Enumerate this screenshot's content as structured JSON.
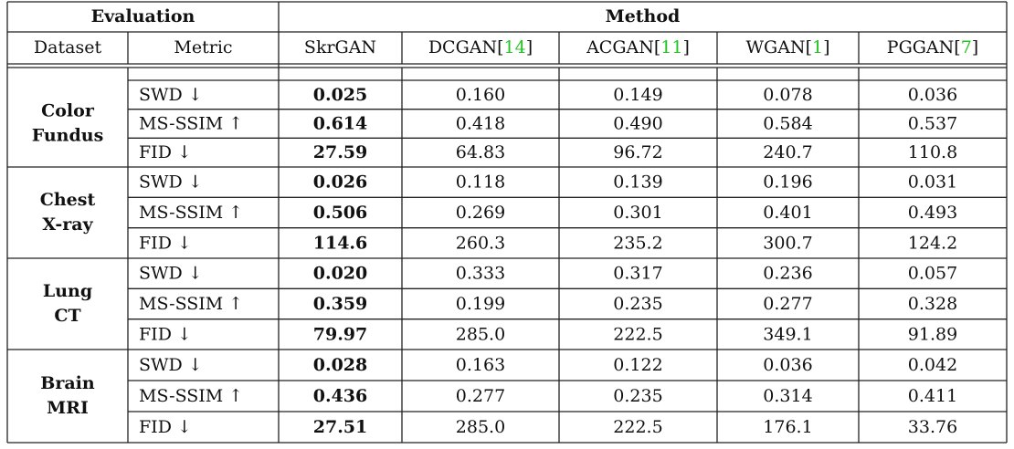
{
  "table": {
    "group_headers": [
      "Evaluation",
      "Method"
    ],
    "columns": [
      {
        "name": "Dataset"
      },
      {
        "name": "Metric"
      },
      {
        "name": "SkrGAN"
      },
      {
        "name": "DCGAN",
        "open": "[",
        "ref": "14",
        "close": "]"
      },
      {
        "name": "ACGAN",
        "open": "[",
        "ref": "11",
        "close": "]"
      },
      {
        "name": "WGAN",
        "open": "[",
        "ref": "1",
        "close": "]"
      },
      {
        "name": "PGGAN",
        "open": "[",
        "ref": "7",
        "close": "]"
      }
    ],
    "groups": [
      {
        "dataset": [
          "Color",
          "Fundus"
        ],
        "rows": [
          {
            "metric": "SWD ↓",
            "values": [
              "0.025",
              "0.160",
              "0.149",
              "0.078",
              "0.036"
            ]
          },
          {
            "metric": "MS-SSIM ↑",
            "values": [
              "0.614",
              "0.418",
              "0.490",
              "0.584",
              "0.537"
            ]
          },
          {
            "metric": "FID ↓",
            "values": [
              "27.59",
              "64.83",
              "96.72",
              "240.7",
              "110.8"
            ]
          }
        ]
      },
      {
        "dataset": [
          "Chest",
          "X-ray"
        ],
        "rows": [
          {
            "metric": "SWD ↓",
            "values": [
              "0.026",
              "0.118",
              "0.139",
              "0.196",
              "0.031"
            ]
          },
          {
            "metric": "MS-SSIM ↑",
            "values": [
              "0.506",
              "0.269",
              "0.301",
              "0.401",
              "0.493"
            ]
          },
          {
            "metric": "FID ↓",
            "values": [
              "114.6",
              "260.3",
              "235.2",
              "300.7",
              "124.2"
            ]
          }
        ]
      },
      {
        "dataset": [
          "Lung",
          "CT"
        ],
        "rows": [
          {
            "metric": "SWD ↓",
            "values": [
              "0.020",
              "0.333",
              "0.317",
              "0.236",
              "0.057"
            ]
          },
          {
            "metric": "MS-SSIM ↑",
            "values": [
              "0.359",
              "0.199",
              "0.235",
              "0.277",
              "0.328"
            ]
          },
          {
            "metric": "FID ↓",
            "values": [
              "79.97",
              "285.0",
              "222.5",
              "349.1",
              "91.89"
            ]
          }
        ]
      },
      {
        "dataset": [
          "Brain",
          "MRI"
        ],
        "rows": [
          {
            "metric": "SWD ↓",
            "values": [
              "0.028",
              "0.163",
              "0.122",
              "0.036",
              "0.042"
            ]
          },
          {
            "metric": "MS-SSIM ↑",
            "values": [
              "0.436",
              "0.277",
              "0.235",
              "0.314",
              "0.411"
            ]
          },
          {
            "metric": "FID ↓",
            "values": [
              "27.51",
              "285.0",
              "222.5",
              "176.1",
              "33.76"
            ]
          }
        ]
      }
    ]
  }
}
